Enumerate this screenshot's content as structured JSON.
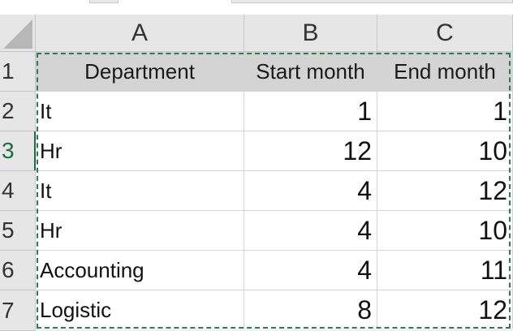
{
  "columns": [
    "A",
    "B",
    "C"
  ],
  "rows": [
    "1",
    "2",
    "3",
    "4",
    "5",
    "6",
    "7"
  ],
  "active_row": "3",
  "header": [
    "Department",
    "Start month",
    "End month"
  ],
  "data_rows": [
    [
      "It",
      "1",
      "1"
    ],
    [
      "Hr",
      "12",
      "10"
    ],
    [
      "It",
      "4",
      "12"
    ],
    [
      "Hr",
      "4",
      "10"
    ],
    [
      "Accounting",
      "4",
      "11"
    ],
    [
      "Logistic",
      "8",
      "12"
    ]
  ],
  "colors": {
    "accent_green": "#1e6b41",
    "marquee_green": "#2f7a52",
    "header_fill": "#d4d4d4",
    "headings_fill": "#e6e6e6"
  }
}
